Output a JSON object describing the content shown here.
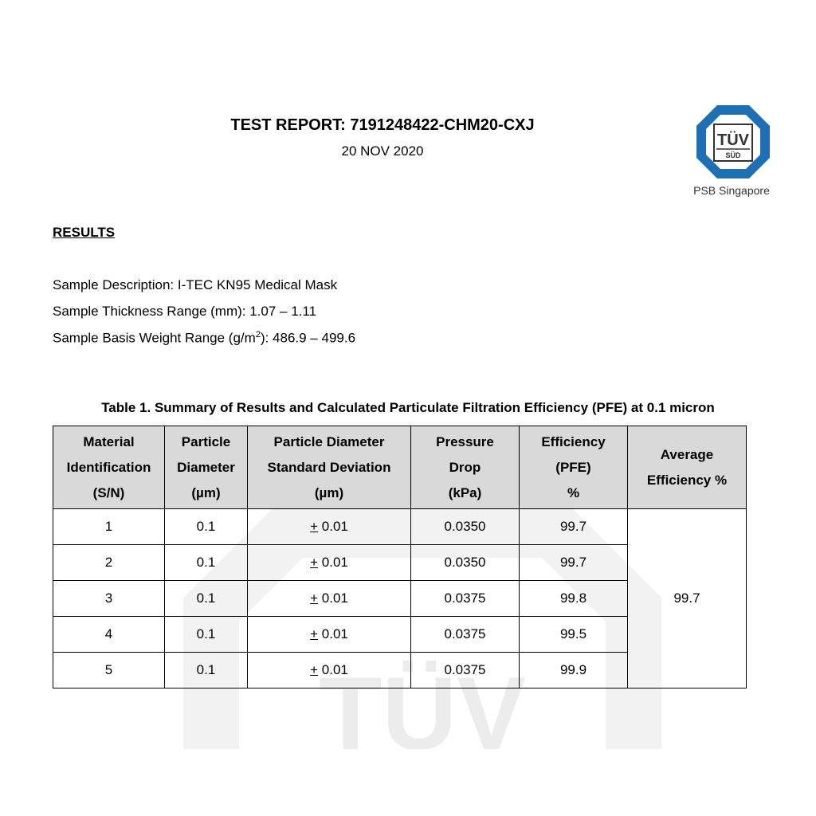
{
  "header": {
    "title": "TEST REPORT:  7191248422-CHM20-CXJ",
    "date": "20 NOV 2020",
    "logo": {
      "text": "TÜV SÜD",
      "caption": "PSB Singapore",
      "color": "#1f6fb5"
    }
  },
  "section": {
    "heading": "RESULTS"
  },
  "sample": {
    "description": "Sample Description: I-TEC KN95 Medical Mask",
    "thickness": "Sample Thickness Range (mm): 1.07 – 1.11",
    "weight_prefix": "Sample Basis Weight Range (g/m",
    "weight_sup": "2",
    "weight_suffix": "): 486.9 – 499.6"
  },
  "table": {
    "caption": "Table 1. Summary of Results and Calculated Particulate Filtration Efficiency (PFE) at 0.1 micron",
    "headers": [
      [
        "Material",
        "Identification",
        "(S/N)"
      ],
      [
        "Particle",
        "Diameter",
        "(µm)"
      ],
      [
        "Particle Diameter",
        "Standard Deviation",
        "(µm)"
      ],
      [
        "Pressure",
        "Drop",
        "(kPa)"
      ],
      [
        "Efficiency",
        "(PFE)",
        "%"
      ],
      [
        "Average",
        "Efficiency  %"
      ]
    ],
    "pm_sign": "+",
    "rows": [
      {
        "sn": "1",
        "diameter": "0.1",
        "sd": "0.01",
        "pressure": "0.0350",
        "pfe": "99.7"
      },
      {
        "sn": "2",
        "diameter": "0.1",
        "sd": "0.01",
        "pressure": "0.0350",
        "pfe": "99.7"
      },
      {
        "sn": "3",
        "diameter": "0.1",
        "sd": "0.01",
        "pressure": "0.0375",
        "pfe": "99.8"
      },
      {
        "sn": "4",
        "diameter": "0.1",
        "sd": "0.01",
        "pressure": "0.0375",
        "pfe": "99.5"
      },
      {
        "sn": "5",
        "diameter": "0.1",
        "sd": "0.01",
        "pressure": "0.0375",
        "pfe": "99.9"
      }
    ],
    "average": "99.7"
  }
}
